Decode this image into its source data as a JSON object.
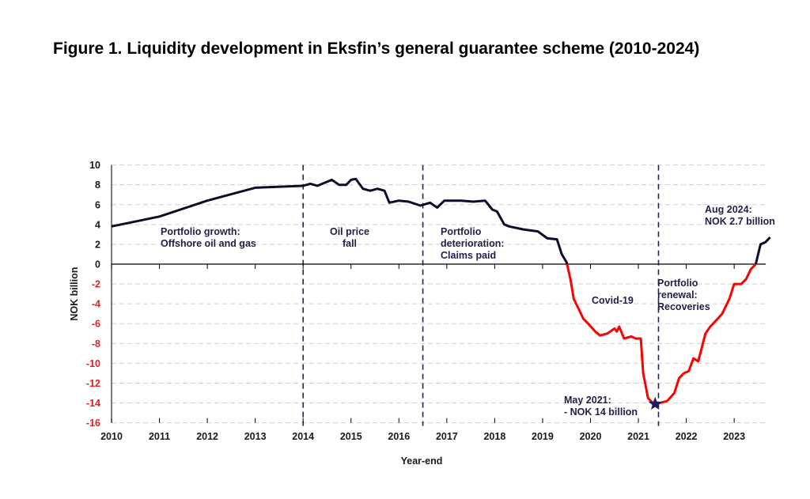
{
  "title": "Figure 1. Liquidity development in Eksfin’s general guarantee scheme (2010-2024)",
  "chart_data": {
    "type": "line",
    "title": "Figure 1. Liquidity development in Eksfin’s general guarantee scheme (2010-2024)",
    "xlabel": "Year-end",
    "ylabel": "NOK billion",
    "xlim": [
      2010,
      2023.75
    ],
    "ylim": [
      -16,
      10
    ],
    "grid": true,
    "x_ticks": [
      "2010",
      "2011",
      "2012",
      "2013",
      "2014",
      "2015",
      "2016",
      "2017",
      "2018",
      "2019",
      "2020",
      "2021",
      "2022",
      "2023"
    ],
    "y_ticks": [
      10,
      8,
      6,
      4,
      2,
      0,
      -2,
      -4,
      -6,
      -8,
      -10,
      -12,
      -14,
      -16
    ],
    "colors": {
      "positive": "#0d0d2b",
      "negative": "#ff0000",
      "axis_text": "#1a1a1a",
      "negative_tick": "#e02020",
      "annotation": "#1f1f4a",
      "star": "#1a1f5c",
      "grid": "#d0d0d0",
      "divider": "#1f2a4a"
    },
    "series": [
      {
        "name": "Liquidity",
        "x": [
          2010.0,
          2011.0,
          2012.0,
          2013.0,
          2014.0,
          2014.15,
          2014.3,
          2014.6,
          2014.75,
          2014.9,
          2015.0,
          2015.1,
          2015.25,
          2015.4,
          2015.55,
          2015.7,
          2015.8,
          2016.0,
          2016.2,
          2016.45,
          2016.65,
          2016.8,
          2016.95,
          2017.3,
          2017.55,
          2017.8,
          2017.95,
          2018.05,
          2018.2,
          2018.3,
          2018.6,
          2018.9,
          2019.1,
          2019.3,
          2019.4,
          2019.5,
          2019.58,
          2019.65,
          2019.75,
          2019.85,
          2019.95,
          2020.1,
          2020.2,
          2020.35,
          2020.5,
          2020.55,
          2020.6,
          2020.7,
          2020.85,
          2020.95,
          2021.05,
          2021.1,
          2021.2,
          2021.3,
          2021.45,
          2021.6,
          2021.75,
          2021.85,
          2021.95,
          2022.05,
          2022.15,
          2022.25,
          2022.4,
          2022.5,
          2022.6,
          2022.75,
          2022.9,
          2023.0,
          2023.15,
          2023.25,
          2023.35,
          2023.45,
          2023.55,
          2023.65,
          2023.75
        ],
        "y": [
          3.8,
          4.8,
          6.4,
          7.7,
          7.9,
          8.1,
          7.9,
          8.5,
          8.0,
          8.0,
          8.5,
          8.6,
          7.6,
          7.4,
          7.6,
          7.4,
          6.2,
          6.4,
          6.3,
          5.9,
          6.2,
          5.7,
          6.4,
          6.4,
          6.3,
          6.4,
          5.5,
          5.3,
          4.0,
          3.8,
          3.5,
          3.3,
          2.6,
          2.5,
          1.0,
          0.2,
          -1.5,
          -3.5,
          -4.5,
          -5.5,
          -6.0,
          -6.8,
          -7.2,
          -7.0,
          -6.5,
          -6.8,
          -6.3,
          -7.5,
          -7.3,
          -7.5,
          -7.5,
          -11.0,
          -13.5,
          -14.0,
          -14.0,
          -13.8,
          -13.0,
          -11.5,
          -11.0,
          -10.8,
          -9.5,
          -9.8,
          -7.0,
          -6.3,
          -5.8,
          -5.0,
          -3.5,
          -2.0,
          -2.0,
          -1.5,
          -0.5,
          0.0,
          2.0,
          2.2,
          2.7
        ]
      }
    ],
    "dividers": [
      2014.0,
      2016.5,
      2021.42
    ],
    "annotations": [
      {
        "lines": [
          "Portfolio growth:",
          "Offshore oil and gas"
        ]
      },
      {
        "lines": [
          "Oil price",
          "fall"
        ]
      },
      {
        "lines": [
          "Portfolio",
          "deterioration:",
          "Claims paid"
        ]
      },
      {
        "lines": [
          "Covid-19"
        ]
      },
      {
        "lines": [
          "Portfolio",
          "renewal:",
          "Recoveries"
        ]
      },
      {
        "lines": [
          "Aug 2024:",
          "NOK 2.7 billion"
        ]
      },
      {
        "lines": [
          "May 2021:",
          "-  NOK 14 billion"
        ]
      }
    ],
    "marker": {
      "label": "minimum",
      "x": 2021.35,
      "y": -14.1,
      "shape": "star"
    }
  }
}
